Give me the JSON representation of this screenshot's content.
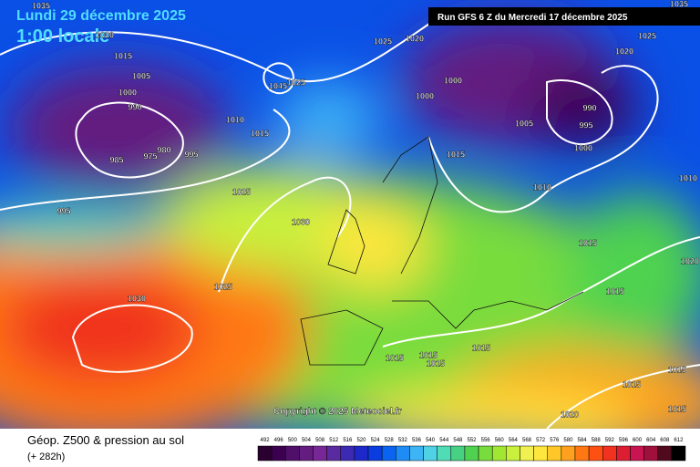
{
  "header": {
    "date": "Lundi 29 décembre 2025",
    "time": "1:00 locale",
    "run": "Run GFS 6 Z du Mercredi 17 décembre 2025"
  },
  "map": {
    "copyright": "Copyright © 2025 Meteociel.fr",
    "isobar_labels": [
      1035,
      1020,
      1015,
      1005,
      1000,
      990,
      985,
      975,
      980,
      995,
      995,
      1025,
      1030,
      1025,
      1030,
      1010,
      1015,
      1045,
      1025,
      1025,
      1020,
      1000,
      1000,
      1005,
      990,
      995,
      1000,
      1010,
      1015,
      1015,
      1015,
      1020,
      1025,
      1015,
      1015,
      1015,
      1015,
      1015,
      1015,
      1015,
      1020,
      1020,
      1010,
      1035
    ]
  },
  "footer": {
    "title": "Géop. Z500 & pression au sol",
    "lead": "(+ 282h)"
  },
  "legend": {
    "values": [
      492,
      496,
      500,
      504,
      508,
      512,
      516,
      520,
      524,
      528,
      532,
      536,
      540,
      544,
      548,
      552,
      556,
      560,
      564,
      568,
      572,
      576,
      580,
      584,
      588,
      592,
      596,
      600,
      604,
      608,
      612
    ],
    "colors": [
      "#2a0030",
      "#3c0050",
      "#50106a",
      "#641c80",
      "#782896",
      "#5a2aa0",
      "#3c2ab4",
      "#1e28c8",
      "#0a3ce0",
      "#0a64f0",
      "#1e8cf5",
      "#3cb4f5",
      "#50d2e6",
      "#50dcb4",
      "#46d282",
      "#50d250",
      "#78dc3c",
      "#a0e632",
      "#c8f03c",
      "#f0f050",
      "#ffe63c",
      "#ffc828",
      "#ffa01e",
      "#ff7814",
      "#ff5014",
      "#f0321e",
      "#dc1e32",
      "#c81450",
      "#a0103c",
      "#500a1e",
      "#000000"
    ]
  }
}
